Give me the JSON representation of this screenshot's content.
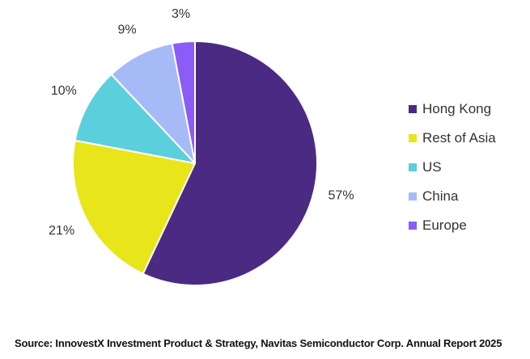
{
  "chart_data": {
    "type": "pie",
    "categories": [
      "Hong Kong",
      "Rest of Asia",
      "US",
      "China",
      "Europe"
    ],
    "values": [
      57,
      21,
      10,
      9,
      3
    ],
    "data_labels": [
      "57%",
      "21%",
      "10%",
      "9%",
      "3%"
    ],
    "colors": [
      "#4a2a82",
      "#e8e51a",
      "#5ccfdc",
      "#a7baf8",
      "#8b5cf6"
    ],
    "start_angle_deg": 0,
    "direction": "clockwise",
    "legend_placement": "right"
  },
  "source": "Source: InnovestX Investment Product & Strategy, Navitas Semiconductor Corp. Annual Report 2025"
}
